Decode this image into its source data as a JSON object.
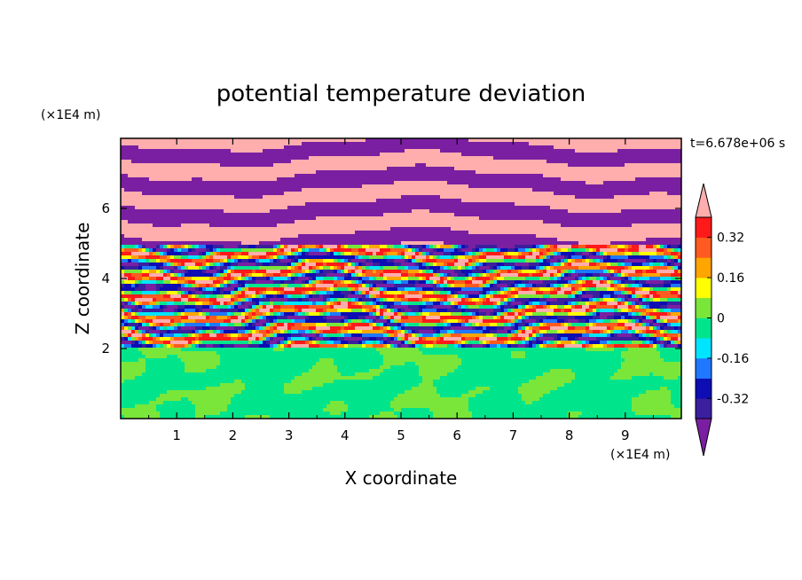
{
  "chart_data": {
    "type": "heatmap",
    "title": "potential temperature deviation",
    "xlabel": "X coordinate",
    "ylabel": "Z coordinate",
    "x_units": "(×1E4 m)",
    "y_units": "(×1E4 m)",
    "time_label": "t=6.678e+06 s",
    "x_ticks": [
      1,
      2,
      3,
      4,
      5,
      6,
      7,
      8,
      9
    ],
    "y_ticks": [
      2,
      4,
      6
    ],
    "xlim": [
      0,
      10
    ],
    "ylim": [
      0,
      8
    ],
    "grid": false,
    "colorbar": {
      "position": "right",
      "labels": [
        "0.32",
        "0.16",
        "0",
        "-0.16",
        "-0.32"
      ],
      "label_values": [
        0.32,
        0.16,
        0,
        -0.16,
        -0.32
      ],
      "levels": [
        -0.4,
        -0.32,
        -0.24,
        -0.16,
        -0.08,
        0,
        0.08,
        0.16,
        0.24,
        0.32,
        0.4
      ],
      "colors": [
        "#3a1f9e",
        "#0d0db3",
        "#1f78ff",
        "#00e5ff",
        "#00e58c",
        "#7ae63a",
        "#ffff00",
        "#ffa500",
        "#ff5a1f",
        "#ff1a1a"
      ],
      "under_color": "#7a1fa2",
      "over_color": "#ffadad"
    },
    "regions": {
      "lower_z_range": [
        0,
        2
      ],
      "lower_dominant_values": [
        -0.05,
        0.03
      ],
      "middle_z_range": [
        2,
        5
      ],
      "middle_value_range": [
        -0.4,
        0.4
      ],
      "upper_z_range": [
        5,
        8
      ],
      "upper_dominant_values": [
        -0.45,
        0.45
      ]
    }
  }
}
